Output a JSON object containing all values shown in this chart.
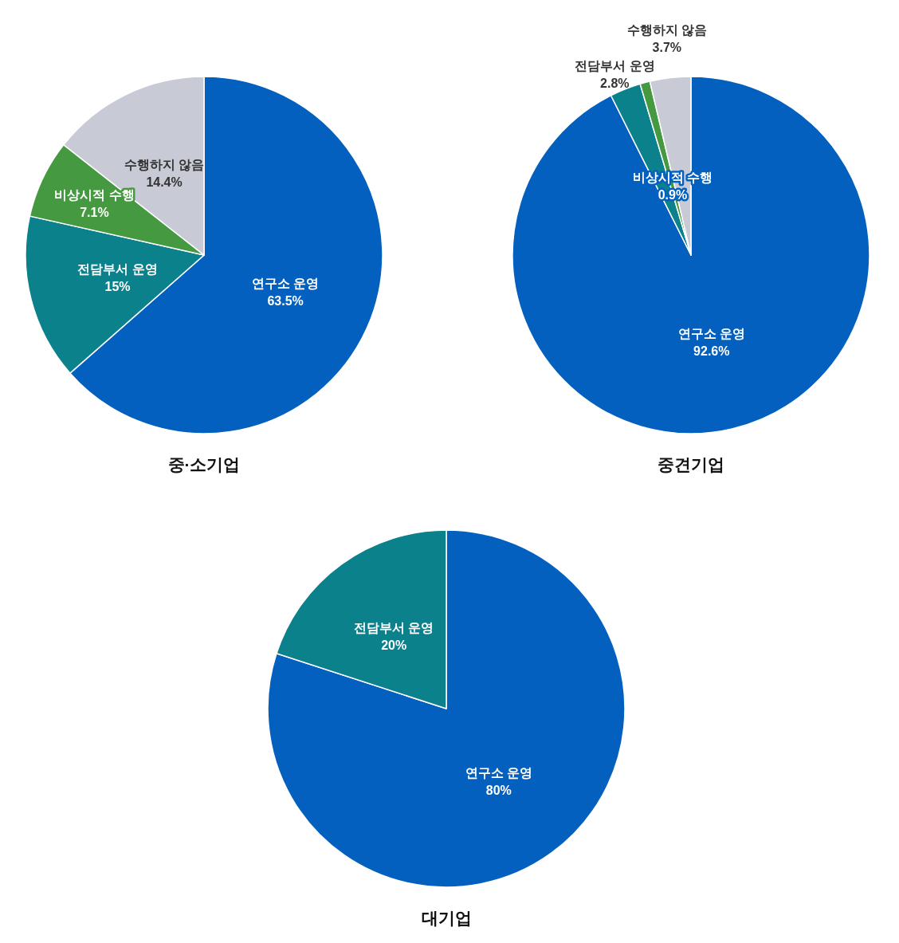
{
  "chart_data": [
    {
      "type": "pie",
      "title": "중·소기업",
      "categories": [
        "연구소 운영",
        "전담부서 운영",
        "비상시적 수행",
        "수행하지 않음"
      ],
      "values": [
        63.5,
        15,
        7.1,
        14.4
      ],
      "value_labels": [
        "63.5%",
        "15%",
        "7.1%",
        "14.4%"
      ],
      "colors": [
        "#0460bf",
        "#0b818c",
        "#459a41",
        "#c8cbd6"
      ]
    },
    {
      "type": "pie",
      "title": "중견기업",
      "categories": [
        "연구소 운영",
        "전담부서 운영",
        "비상시적 수행",
        "수행하지 않음"
      ],
      "values": [
        92.6,
        2.8,
        0.9,
        3.7
      ],
      "value_labels": [
        "92.6%",
        "2.8%",
        "0.9%",
        "3.7%"
      ],
      "colors": [
        "#0460bf",
        "#0b818c",
        "#459a41",
        "#c8cbd6"
      ]
    },
    {
      "type": "pie",
      "title": "대기업",
      "categories": [
        "연구소 운영",
        "전담부서 운영"
      ],
      "values": [
        80,
        20
      ],
      "value_labels": [
        "80%",
        "20%"
      ],
      "colors": [
        "#0460bf",
        "#0b818c"
      ]
    }
  ]
}
